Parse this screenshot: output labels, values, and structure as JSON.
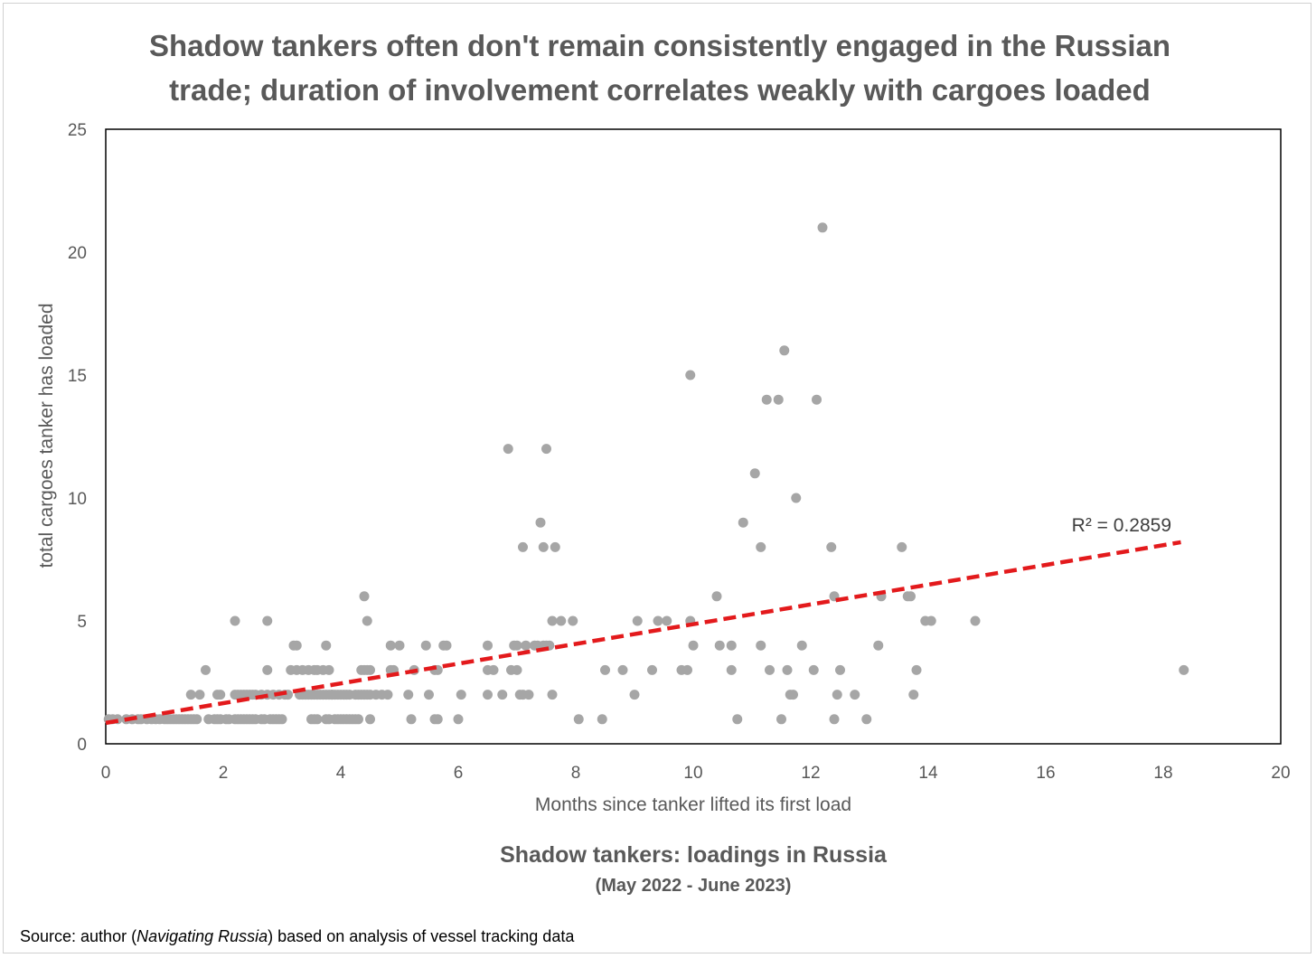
{
  "chart_data": {
    "type": "scatter",
    "title_lines": [
      "Shadow tankers often don't remain consistently engaged in the Russian",
      "trade; duration of involvement correlates weakly with cargoes loaded"
    ],
    "xlabel": "Months since tanker lifted its first load",
    "ylabel": "total cargoes tanker has loaded",
    "xlim": [
      0,
      20
    ],
    "ylim": [
      0,
      25
    ],
    "x_ticks": [
      "0",
      "2",
      "4",
      "6",
      "8",
      "10",
      "12",
      "14",
      "16",
      "18",
      "20"
    ],
    "y_ticks": [
      "0",
      "5",
      "10",
      "15",
      "20",
      "25"
    ],
    "grid": false,
    "marker_color": "#a6a6a6",
    "trendline": {
      "type": "linear",
      "style": "dashed",
      "color": "#e31a1c",
      "x": [
        0,
        18.3
      ],
      "y": [
        0.85,
        8.2
      ],
      "label": "R² = 0.2859"
    },
    "points": [
      [
        0.05,
        1
      ],
      [
        0.12,
        1
      ],
      [
        0.2,
        1
      ],
      [
        0.35,
        1
      ],
      [
        0.45,
        1
      ],
      [
        0.55,
        1
      ],
      [
        0.6,
        1
      ],
      [
        0.7,
        1
      ],
      [
        0.78,
        1
      ],
      [
        0.85,
        1
      ],
      [
        0.92,
        1
      ],
      [
        1.0,
        1
      ],
      [
        1.05,
        1
      ],
      [
        1.1,
        1
      ],
      [
        1.15,
        1
      ],
      [
        1.2,
        1
      ],
      [
        1.25,
        1
      ],
      [
        1.3,
        1
      ],
      [
        1.35,
        1
      ],
      [
        1.4,
        1
      ],
      [
        1.45,
        1
      ],
      [
        1.5,
        1
      ],
      [
        1.55,
        1
      ],
      [
        1.45,
        2
      ],
      [
        1.6,
        2
      ],
      [
        1.7,
        3
      ],
      [
        1.75,
        1
      ],
      [
        1.85,
        1
      ],
      [
        1.9,
        1
      ],
      [
        1.95,
        1
      ],
      [
        1.9,
        2
      ],
      [
        1.95,
        2
      ],
      [
        2.05,
        1
      ],
      [
        2.1,
        1
      ],
      [
        2.2,
        1
      ],
      [
        2.25,
        1
      ],
      [
        2.3,
        1
      ],
      [
        2.35,
        1
      ],
      [
        2.4,
        1
      ],
      [
        2.45,
        1
      ],
      [
        2.5,
        1
      ],
      [
        2.55,
        1
      ],
      [
        2.2,
        2
      ],
      [
        2.25,
        2
      ],
      [
        2.3,
        2
      ],
      [
        2.35,
        2
      ],
      [
        2.4,
        2
      ],
      [
        2.45,
        2
      ],
      [
        2.5,
        2
      ],
      [
        2.55,
        2
      ],
      [
        2.2,
        5
      ],
      [
        2.65,
        1
      ],
      [
        2.7,
        1
      ],
      [
        2.8,
        1
      ],
      [
        2.85,
        1
      ],
      [
        2.9,
        1
      ],
      [
        2.95,
        1
      ],
      [
        3.0,
        1
      ],
      [
        2.65,
        2
      ],
      [
        2.75,
        2
      ],
      [
        2.85,
        2
      ],
      [
        2.95,
        2
      ],
      [
        3.05,
        2
      ],
      [
        3.1,
        2
      ],
      [
        2.75,
        3
      ],
      [
        2.75,
        5
      ],
      [
        3.15,
        3
      ],
      [
        3.25,
        3
      ],
      [
        3.2,
        4
      ],
      [
        3.25,
        4
      ],
      [
        3.3,
        2
      ],
      [
        3.35,
        2
      ],
      [
        3.4,
        2
      ],
      [
        3.45,
        2
      ],
      [
        3.5,
        2
      ],
      [
        3.55,
        2
      ],
      [
        3.6,
        2
      ],
      [
        3.35,
        3
      ],
      [
        3.45,
        3
      ],
      [
        3.55,
        3
      ],
      [
        3.6,
        3
      ],
      [
        3.7,
        3
      ],
      [
        3.5,
        1
      ],
      [
        3.55,
        1
      ],
      [
        3.6,
        1
      ],
      [
        3.65,
        2
      ],
      [
        3.7,
        2
      ],
      [
        3.75,
        2
      ],
      [
        3.8,
        2
      ],
      [
        3.85,
        2
      ],
      [
        3.9,
        2
      ],
      [
        3.95,
        2
      ],
      [
        4.0,
        2
      ],
      [
        4.05,
        2
      ],
      [
        4.1,
        2
      ],
      [
        4.15,
        2
      ],
      [
        3.75,
        1
      ],
      [
        3.8,
        1
      ],
      [
        3.9,
        1
      ],
      [
        3.95,
        1
      ],
      [
        4.0,
        1
      ],
      [
        4.05,
        1
      ],
      [
        4.1,
        1
      ],
      [
        4.15,
        1
      ],
      [
        4.2,
        1
      ],
      [
        4.25,
        1
      ],
      [
        4.3,
        1
      ],
      [
        3.75,
        4
      ],
      [
        3.8,
        3
      ],
      [
        3.85,
        2
      ],
      [
        4.25,
        2
      ],
      [
        4.3,
        2
      ],
      [
        4.35,
        2
      ],
      [
        4.4,
        2
      ],
      [
        4.45,
        2
      ],
      [
        4.5,
        2
      ],
      [
        4.35,
        3
      ],
      [
        4.4,
        3
      ],
      [
        4.45,
        3
      ],
      [
        4.5,
        3
      ],
      [
        4.4,
        6
      ],
      [
        4.45,
        5
      ],
      [
        4.5,
        1
      ],
      [
        4.6,
        2
      ],
      [
        4.7,
        2
      ],
      [
        4.8,
        2
      ],
      [
        4.85,
        3
      ],
      [
        4.9,
        3
      ],
      [
        4.85,
        4
      ],
      [
        5.0,
        4
      ],
      [
        5.15,
        2
      ],
      [
        5.2,
        1
      ],
      [
        5.25,
        3
      ],
      [
        5.45,
        4
      ],
      [
        5.5,
        2
      ],
      [
        5.6,
        1
      ],
      [
        5.65,
        1
      ],
      [
        5.6,
        3
      ],
      [
        5.65,
        3
      ],
      [
        5.75,
        4
      ],
      [
        5.8,
        4
      ],
      [
        6.0,
        1
      ],
      [
        6.05,
        2
      ],
      [
        6.5,
        2
      ],
      [
        6.5,
        4
      ],
      [
        6.5,
        3
      ],
      [
        6.6,
        3
      ],
      [
        6.75,
        2
      ],
      [
        6.85,
        12
      ],
      [
        6.9,
        3
      ],
      [
        6.95,
        4
      ],
      [
        7.0,
        4
      ],
      [
        7.0,
        3
      ],
      [
        7.05,
        2
      ],
      [
        7.1,
        2
      ],
      [
        7.1,
        8
      ],
      [
        7.15,
        4
      ],
      [
        7.2,
        2
      ],
      [
        7.3,
        4
      ],
      [
        7.35,
        4
      ],
      [
        7.4,
        9
      ],
      [
        7.45,
        8
      ],
      [
        7.45,
        4
      ],
      [
        7.5,
        12
      ],
      [
        7.5,
        4
      ],
      [
        7.55,
        4
      ],
      [
        7.6,
        5
      ],
      [
        7.6,
        2
      ],
      [
        7.65,
        8
      ],
      [
        7.75,
        5
      ],
      [
        7.95,
        5
      ],
      [
        8.05,
        1
      ],
      [
        8.45,
        1
      ],
      [
        8.5,
        3
      ],
      [
        8.8,
        3
      ],
      [
        9.0,
        2
      ],
      [
        9.05,
        5
      ],
      [
        9.3,
        3
      ],
      [
        9.4,
        5
      ],
      [
        9.55,
        5
      ],
      [
        9.8,
        3
      ],
      [
        9.9,
        3
      ],
      [
        9.95,
        5
      ],
      [
        9.95,
        15
      ],
      [
        10.0,
        4
      ],
      [
        10.4,
        6
      ],
      [
        10.45,
        4
      ],
      [
        10.65,
        4
      ],
      [
        10.65,
        3
      ],
      [
        10.75,
        1
      ],
      [
        10.85,
        9
      ],
      [
        11.05,
        11
      ],
      [
        11.15,
        8
      ],
      [
        11.15,
        4
      ],
      [
        11.25,
        14
      ],
      [
        11.3,
        3
      ],
      [
        11.45,
        14
      ],
      [
        11.5,
        1
      ],
      [
        11.55,
        16
      ],
      [
        11.6,
        3
      ],
      [
        11.65,
        2
      ],
      [
        11.7,
        2
      ],
      [
        11.75,
        10
      ],
      [
        11.85,
        4
      ],
      [
        12.05,
        3
      ],
      [
        12.1,
        14
      ],
      [
        12.2,
        21
      ],
      [
        12.35,
        8
      ],
      [
        12.4,
        6
      ],
      [
        12.4,
        1
      ],
      [
        12.45,
        2
      ],
      [
        12.5,
        3
      ],
      [
        12.75,
        2
      ],
      [
        12.95,
        1
      ],
      [
        13.15,
        4
      ],
      [
        13.2,
        6
      ],
      [
        13.55,
        8
      ],
      [
        13.65,
        6
      ],
      [
        13.7,
        6
      ],
      [
        13.75,
        2
      ],
      [
        13.8,
        3
      ],
      [
        13.95,
        5
      ],
      [
        14.05,
        5
      ],
      [
        14.8,
        5
      ],
      [
        18.35,
        3
      ]
    ],
    "source_parts": [
      "Source: author (",
      "Navigating Russia",
      ") based on analysis of vessel tracking data"
    ],
    "subtitle": "Shadow tankers: loadings in Russia",
    "subtitle2": "(May 2022 - June 2023)"
  }
}
